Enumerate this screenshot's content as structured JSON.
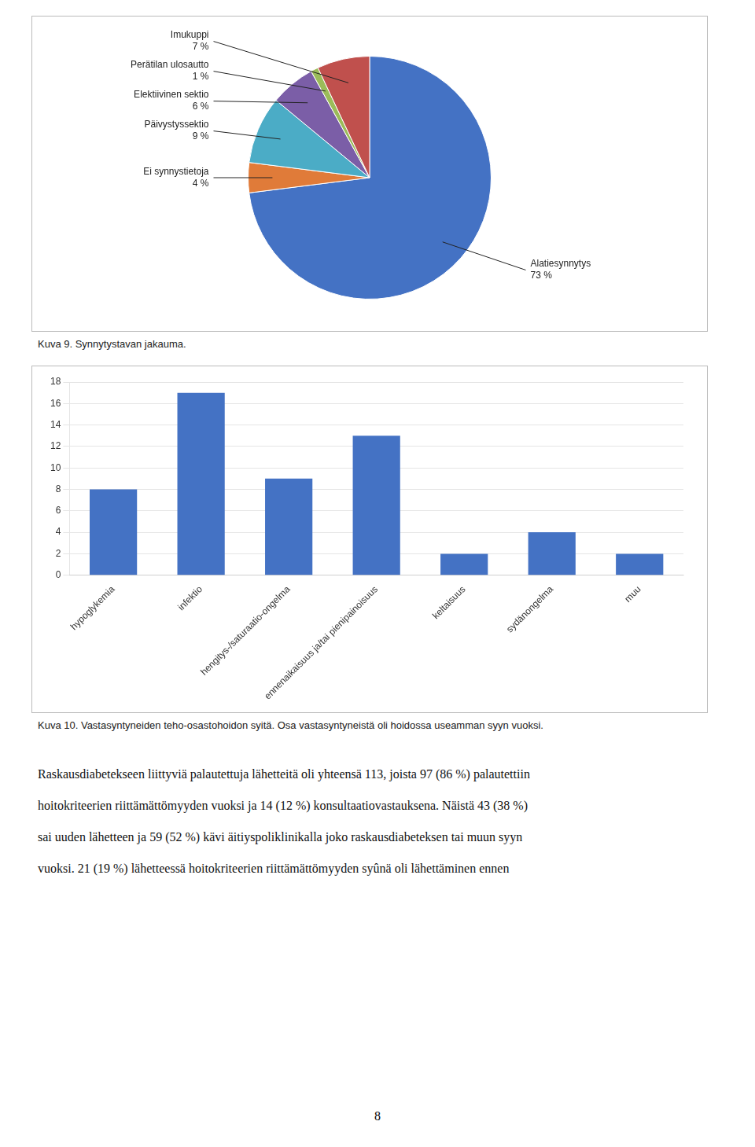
{
  "chart_data": [
    {
      "type": "pie",
      "title": "Kuva 9. Synnytystavan jakauma.",
      "categories": [
        "Alatiesynnytys",
        "Ei synnystietoja",
        "Päivystyssektio",
        "Elektiivinen sektio",
        "Perätilan ulosautto",
        "Imukuppi"
      ],
      "values": [
        73,
        4,
        9,
        6,
        1,
        7
      ],
      "value_labels": [
        "73 %",
        "4 %",
        "9 %",
        "6 %",
        "1 %",
        "7 %"
      ],
      "colors": [
        "#4472C4",
        "#E07B39",
        "#4BACC6",
        "#7B5EA7",
        "#9BBB59",
        "#C0504D"
      ],
      "data_labels": true
    },
    {
      "type": "bar",
      "title": "Kuva 10. Vastasyntyneiden teho-osastohoidon syitä. Osa vastasyntyneistä oli hoidossa useamman syyn vuoksi.",
      "categories": [
        "hypoglykemia",
        "infektio",
        "hengitys-/saturaatio-ongelma",
        "ennenaikaisuus ja/tai pienipainoisuus",
        "keltaisuus",
        "sydänongelma",
        "muu"
      ],
      "values": [
        8,
        17,
        9,
        13,
        2,
        4,
        2
      ],
      "color": "#4472C4",
      "ylim": [
        0,
        18
      ],
      "yticks": [
        0,
        2,
        4,
        6,
        8,
        10,
        12,
        14,
        16,
        18
      ],
      "grid": true
    }
  ],
  "body_text": [
    "Raskausdiabetekseen liittyviä palautettuja lähetteitä oli yhteensä 113, joista 97 (86 %) palautettiin",
    "hoitokriteerien riittämättömyyden vuoksi ja 14 (12 %) konsultaatiovastauksena. Näistä 43 (38 %)",
    "sai uuden lähetteen ja 59 (52 %) kävi äitiyspoliklinikalla joko raskausdiabeteksen tai muun syyn",
    "vuoksi. 21 (19 %) lähetteessä hoitokriteerien riittämättömyyden syûnä oli lähettäminen ennen"
  ],
  "page_number": "8"
}
